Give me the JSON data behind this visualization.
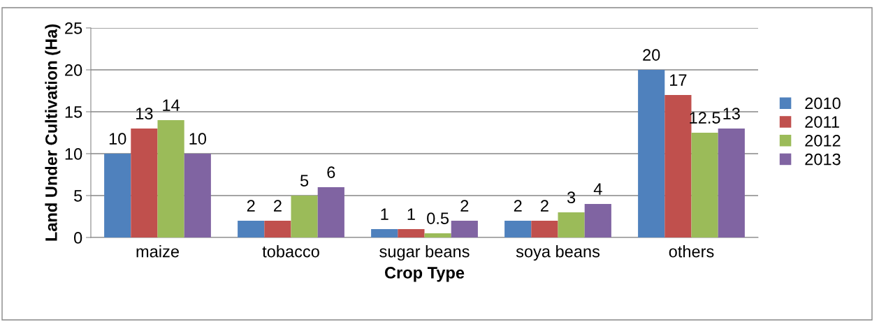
{
  "chart_data": {
    "type": "bar",
    "xlabel": "Crop Type",
    "ylabel": "Land Under Cultivation (Ha)",
    "categories": [
      "maize",
      "tobacco",
      "sugar beans",
      "soya beans",
      "others"
    ],
    "series": [
      {
        "name": "2010",
        "color": "#4f81bd",
        "values": [
          10,
          2,
          1,
          2,
          20
        ]
      },
      {
        "name": "2011",
        "color": "#c0504d",
        "values": [
          13,
          2,
          1,
          2,
          17
        ]
      },
      {
        "name": "2012",
        "color": "#9bbb59",
        "values": [
          14,
          5,
          0.5,
          3,
          12.5
        ]
      },
      {
        "name": "2013",
        "color": "#8064a2",
        "values": [
          10,
          6,
          2,
          4,
          13
        ]
      }
    ],
    "ylim": [
      0,
      25
    ],
    "yticks": [
      0,
      5,
      10,
      15,
      20,
      25
    ],
    "grid": "y",
    "legend": "right",
    "data_labels": true
  }
}
